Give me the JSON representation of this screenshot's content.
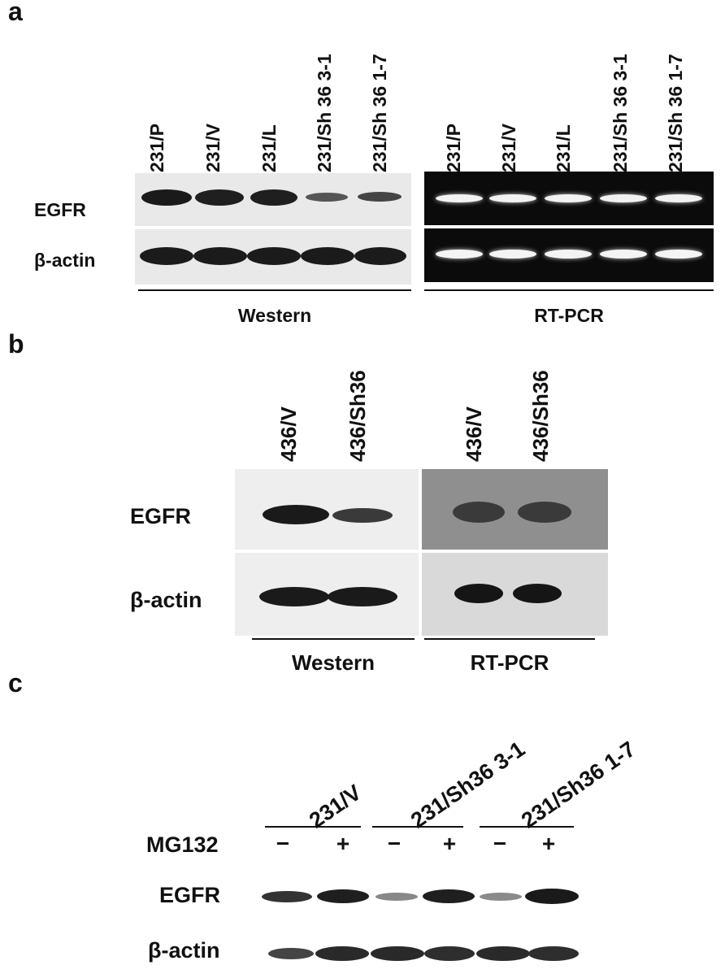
{
  "panel_a": {
    "letter": "a",
    "lanes_western": [
      "231/P",
      "231/V",
      "231/L",
      "231/Sh 36 3-1",
      "231/Sh 36 1-7"
    ],
    "lanes_rtpcr": [
      "231/P",
      "231/V",
      "231/L",
      "231/Sh 36 3-1",
      "231/Sh 36 1-7"
    ],
    "rows": [
      "EGFR",
      "β-actin"
    ],
    "method_western": "Western",
    "method_rtpcr": "RT-PCR"
  },
  "panel_b": {
    "letter": "b",
    "lanes_western": [
      "436/V",
      "436/Sh36"
    ],
    "lanes_rtpcr": [
      "436/V",
      "436/Sh36"
    ],
    "rows": [
      "EGFR",
      "β-actin"
    ],
    "method_western": "Western",
    "method_rtpcr": "RT-PCR"
  },
  "panel_c": {
    "letter": "c",
    "groups": [
      "231/V",
      "231/Sh36 3-1",
      "231/Sh36 1-7"
    ],
    "treatment_label": "MG132",
    "treatment_signs": [
      "−",
      "+",
      "−",
      "+",
      "−",
      "+"
    ],
    "rows": [
      "EGFR",
      "β-actin"
    ]
  }
}
